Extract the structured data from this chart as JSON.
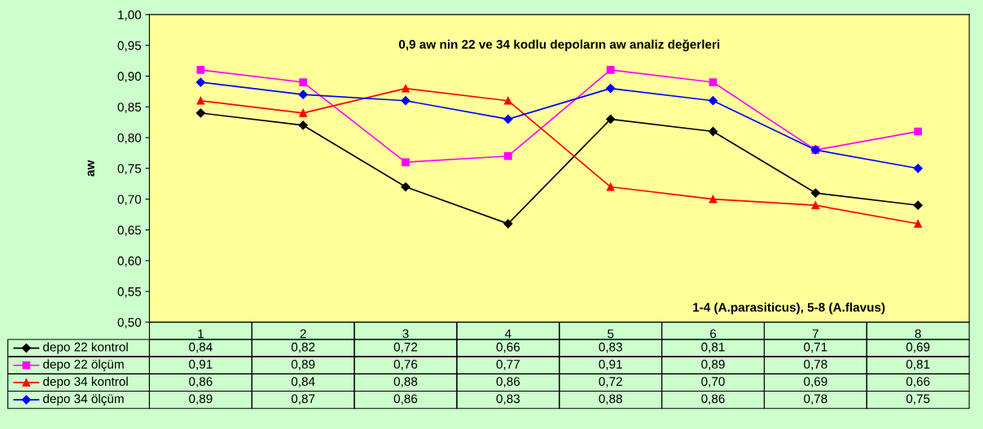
{
  "chart_data": {
    "type": "line",
    "title": "0,9 aw nin 22 ve 34 kodlu depoların aw analiz değerleri",
    "ylabel": "aw",
    "annotations": [
      "1-4 (A.parasiticus), 5-8 (A.flavus)"
    ],
    "categories": [
      "1",
      "2",
      "3",
      "4",
      "5",
      "6",
      "7",
      "8"
    ],
    "series": [
      {
        "name": "depo 22 kontrol",
        "color": "#000000",
        "marker": "diamond",
        "values": [
          0.84,
          0.82,
          0.72,
          0.66,
          0.83,
          0.81,
          0.71,
          0.69
        ],
        "value_labels": [
          "0,84",
          "0,82",
          "0,72",
          "0,66",
          "0,83",
          "0,81",
          "0,71",
          "0,69"
        ]
      },
      {
        "name": "depo 22 ölçüm",
        "color": "#ff00ff",
        "marker": "square",
        "values": [
          0.91,
          0.89,
          0.76,
          0.77,
          0.91,
          0.89,
          0.78,
          0.81
        ],
        "value_labels": [
          "0,91",
          "0,89",
          "0,76",
          "0,77",
          "0,91",
          "0,89",
          "0,78",
          "0,81"
        ]
      },
      {
        "name": "depo 34 kontrol",
        "color": "#ff0000",
        "marker": "triangle",
        "values": [
          0.86,
          0.84,
          0.88,
          0.86,
          0.72,
          0.7,
          0.69,
          0.66
        ],
        "value_labels": [
          "0,86",
          "0,84",
          "0,88",
          "0,86",
          "0,72",
          "0,70",
          "0,69",
          "0,66"
        ]
      },
      {
        "name": "depo 34 ölçüm",
        "color": "#0000ff",
        "marker": "diamond",
        "values": [
          0.89,
          0.87,
          0.86,
          0.83,
          0.88,
          0.86,
          0.78,
          0.75
        ],
        "value_labels": [
          "0,89",
          "0,87",
          "0,86",
          "0,83",
          "0,88",
          "0,86",
          "0,78",
          "0,75"
        ]
      }
    ],
    "ylim": [
      0.5,
      1.0
    ],
    "yticks": [
      {
        "value": 0.5,
        "label": "0,50"
      },
      {
        "value": 0.55,
        "label": "0,55"
      },
      {
        "value": 0.6,
        "label": "0,60"
      },
      {
        "value": 0.65,
        "label": "0,65"
      },
      {
        "value": 0.7,
        "label": "0,70"
      },
      {
        "value": 0.75,
        "label": "0,75"
      },
      {
        "value": 0.8,
        "label": "0,80"
      },
      {
        "value": 0.85,
        "label": "0,85"
      },
      {
        "value": 0.9,
        "label": "0,90"
      },
      {
        "value": 0.95,
        "label": "0,95"
      },
      {
        "value": 1.0,
        "label": "1,00"
      }
    ],
    "grid": false,
    "legend": "bottom",
    "line_style": "solid"
  }
}
